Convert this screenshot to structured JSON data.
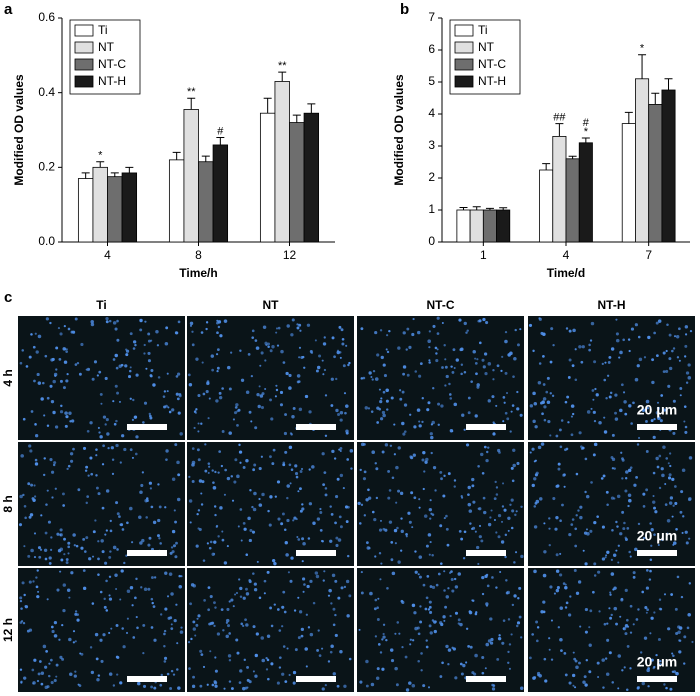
{
  "chart_data": [
    {
      "type": "bar",
      "panel": "a",
      "x_label": "Time/h",
      "y_label": "Modified OD values",
      "categories": [
        "4",
        "8",
        "12"
      ],
      "ylim": [
        0,
        0.6
      ],
      "yticks": [
        {
          "value": 0,
          "label": "0.0"
        },
        0.2,
        0.4,
        0.6
      ],
      "grid": false,
      "legend": "upper left",
      "series": [
        {
          "name": "Ti",
          "color": "#ffffff",
          "values": [
            0.17,
            0.22,
            0.345
          ],
          "errors": [
            0.015,
            0.02,
            0.04
          ],
          "significance": [
            null,
            null,
            null
          ]
        },
        {
          "name": "NT",
          "color": "#e0e0e0",
          "values": [
            0.2,
            0.355,
            0.43
          ],
          "errors": [
            0.015,
            0.03,
            0.025
          ],
          "significance": [
            "*",
            "**",
            "**"
          ]
        },
        {
          "name": "NT-C",
          "color": "#6e6e6e",
          "values": [
            0.175,
            0.215,
            0.32
          ],
          "errors": [
            0.01,
            0.015,
            0.02
          ],
          "significance": [
            null,
            null,
            null
          ]
        },
        {
          "name": "NT-H",
          "color": "#1a1a1a",
          "values": [
            0.185,
            0.26,
            0.345
          ],
          "errors": [
            0.015,
            0.02,
            0.025
          ],
          "significance": [
            null,
            "#",
            null
          ]
        }
      ]
    },
    {
      "type": "bar",
      "panel": "b",
      "x_label": "Time/d",
      "y_label": "Modified OD values",
      "categories": [
        "1",
        "4",
        "7"
      ],
      "ylim": [
        0,
        7
      ],
      "yticks": [
        0,
        1,
        2,
        3,
        4,
        5,
        6,
        7
      ],
      "grid": false,
      "legend": "upper left",
      "series": [
        {
          "name": "Ti",
          "color": "#ffffff",
          "values": [
            1.0,
            2.25,
            3.7
          ],
          "errors": [
            0.08,
            0.2,
            0.35
          ],
          "significance": [
            null,
            null,
            null
          ]
        },
        {
          "name": "NT",
          "color": "#e0e0e0",
          "values": [
            1.0,
            3.3,
            5.1
          ],
          "errors": [
            0.1,
            0.4,
            0.75
          ],
          "significance": [
            null,
            "##",
            "*"
          ]
        },
        {
          "name": "NT-C",
          "color": "#6e6e6e",
          "values": [
            1.0,
            2.6,
            4.3
          ],
          "errors": [
            0.05,
            0.08,
            0.35
          ],
          "significance": [
            null,
            null,
            null
          ]
        },
        {
          "name": "NT-H",
          "color": "#1a1a1a",
          "values": [
            1.0,
            3.1,
            4.75
          ],
          "errors": [
            0.07,
            0.15,
            0.35
          ],
          "significance": [
            null,
            [
              "#",
              "*"
            ],
            null
          ]
        }
      ]
    }
  ],
  "image_panel": {
    "label": "c",
    "columns": [
      "Ti",
      "NT",
      "NT-C",
      "NT-H"
    ],
    "rows": [
      "4 h",
      "8 h",
      "12 h"
    ],
    "scale_bar": "20 μm"
  }
}
